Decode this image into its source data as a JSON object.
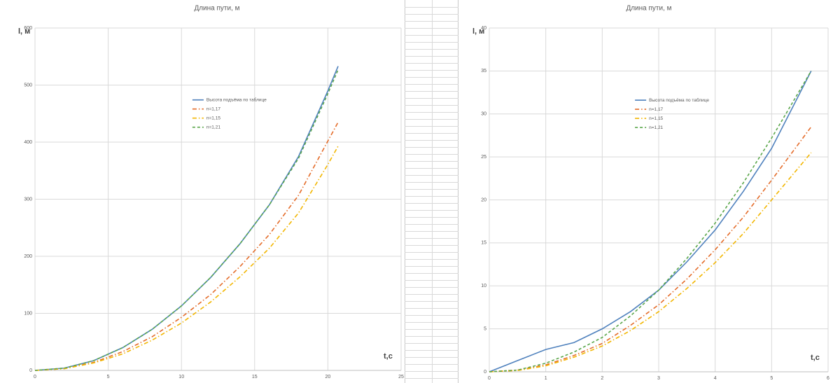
{
  "chart_data": [
    {
      "type": "line",
      "title": "Длина пути, м",
      "y_label": "l, м",
      "x_label": "t,с",
      "x": [
        0,
        2,
        4,
        6,
        8,
        10,
        12,
        14,
        16,
        18,
        20,
        20.7
      ],
      "xlim": [
        0,
        25
      ],
      "xticks": [
        0,
        5,
        10,
        15,
        20,
        25
      ],
      "ylim": [
        0,
        600
      ],
      "yticks": [
        0,
        100,
        200,
        300,
        400,
        500,
        600
      ],
      "grid": true,
      "legend_position": "center",
      "series": [
        {
          "name": "Высота подъёма по таблице",
          "color": "#4f81bd",
          "line_style": "solid",
          "values": [
            0,
            4,
            17,
            40,
            72,
            113,
            163,
            222,
            290,
            375,
            490,
            533
          ]
        },
        {
          "name": "n=1,17",
          "color": "#e46c2a",
          "line_style": "dashdot",
          "values": [
            0,
            3,
            14,
            33,
            59,
            93,
            133,
            182,
            238,
            307,
            402,
            435
          ]
        },
        {
          "name": "n=1,15",
          "color": "#f2b600",
          "line_style": "dashdot",
          "values": [
            0,
            3,
            13,
            29,
            53,
            83,
            120,
            164,
            214,
            276,
            361,
            393
          ]
        },
        {
          "name": "n=1,21",
          "color": "#5aa64a",
          "line_style": "dash",
          "values": [
            0,
            4,
            17,
            40,
            72,
            113,
            163,
            222,
            290,
            372,
            485,
            527
          ]
        }
      ]
    },
    {
      "type": "line",
      "title": "Длина пути, м",
      "y_label": "l, м",
      "x_label": "t,с",
      "x": [
        0,
        0.5,
        1,
        1.5,
        2,
        2.5,
        3,
        3.5,
        4,
        4.5,
        5,
        5.7
      ],
      "xlim": [
        0,
        6
      ],
      "xticks": [
        0,
        1,
        2,
        3,
        4,
        5,
        6
      ],
      "ylim": [
        0,
        40
      ],
      "yticks": [
        0,
        5,
        10,
        15,
        20,
        25,
        30,
        35,
        40
      ],
      "grid": true,
      "legend_position": "center",
      "series": [
        {
          "name": "Высота подъёма по таблице",
          "color": "#4f81bd",
          "line_style": "solid",
          "values": [
            0,
            1.3,
            2.6,
            3.4,
            5,
            7,
            9.5,
            12.8,
            16.5,
            21,
            26,
            35
          ]
        },
        {
          "name": "n=1,17",
          "color": "#e46c2a",
          "line_style": "dashdot",
          "values": [
            0,
            0.2,
            0.8,
            1.9,
            3.3,
            5.4,
            7.8,
            10.8,
            14.2,
            18,
            22.3,
            28.5
          ]
        },
        {
          "name": "n=1,15",
          "color": "#f2b600",
          "line_style": "dashdot",
          "values": [
            0,
            0.15,
            0.7,
            1.7,
            3,
            4.8,
            7,
            9.7,
            12.7,
            16.1,
            20,
            25.5
          ]
        },
        {
          "name": "n=1,21",
          "color": "#5aa64a",
          "line_style": "dash",
          "values": [
            0,
            0.2,
            1,
            2.3,
            4,
            6.5,
            9.5,
            13.2,
            17.3,
            22,
            27.2,
            35
          ]
        }
      ]
    }
  ]
}
